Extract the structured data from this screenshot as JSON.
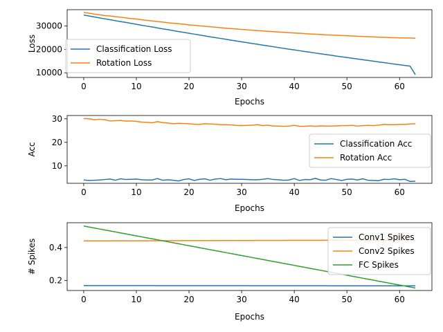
{
  "chart_data": [
    {
      "type": "line",
      "xlabel": "Epochs",
      "ylabel": "Loss",
      "xlim": [
        -3.15,
        66.15
      ],
      "ylim": [
        8000,
        37000
      ],
      "xticks": [
        0,
        10,
        20,
        30,
        40,
        50,
        60
      ],
      "yticks": [
        10000,
        20000,
        30000
      ],
      "legend": {
        "placement": "center-left"
      },
      "grid": false,
      "series": [
        {
          "name": "Classification Loss",
          "color": "#1f77b4",
          "x_range": [
            0,
            63
          ],
          "values": [
            34700,
            34300,
            33900,
            33500,
            33100,
            32700,
            32300,
            31900,
            31550,
            31150,
            30750,
            30350,
            29950,
            29600,
            29200,
            28800,
            28450,
            28050,
            27650,
            27300,
            26900,
            26550,
            26150,
            25800,
            25400,
            25050,
            24700,
            24350,
            23950,
            23600,
            23250,
            22900,
            22550,
            22200,
            21850,
            21500,
            21150,
            20800,
            20450,
            20100,
            19800,
            19450,
            19100,
            18800,
            18450,
            18150,
            17800,
            17500,
            17150,
            16850,
            16550,
            16200,
            15900,
            15600,
            15300,
            15000,
            14650,
            14350,
            14050,
            13750,
            13450,
            13150,
            12850,
            9200
          ]
        },
        {
          "name": "Rotation Loss",
          "color": "#ff7f0e",
          "x_range": [
            0,
            63
          ],
          "values": [
            35800,
            35500,
            35100,
            34800,
            34500,
            34300,
            34000,
            33800,
            33500,
            33200,
            33000,
            32700,
            32400,
            32200,
            31900,
            31700,
            31400,
            31200,
            31000,
            30800,
            30500,
            30300,
            30100,
            29900,
            29700,
            29500,
            29300,
            29100,
            28900,
            28750,
            28550,
            28400,
            28200,
            28050,
            27900,
            27750,
            27600,
            27450,
            27300,
            27150,
            27000,
            26900,
            26750,
            26600,
            26500,
            26400,
            26250,
            26150,
            26050,
            25950,
            25850,
            25750,
            25650,
            25550,
            25450,
            25350,
            25250,
            25150,
            25100,
            25000,
            24950,
            24900,
            24850,
            24800
          ]
        }
      ]
    },
    {
      "type": "line",
      "xlabel": "Epochs",
      "ylabel": "Acc",
      "xlim": [
        -3.15,
        66.15
      ],
      "ylim": [
        2.6,
        31.4
      ],
      "xticks": [
        0,
        10,
        20,
        30,
        40,
        50,
        60
      ],
      "yticks": [
        10,
        20,
        30
      ],
      "legend": {
        "placement": "center-right"
      },
      "grid": false,
      "series": [
        {
          "name": "Classification Acc",
          "color": "#1f77b4",
          "x_range": [
            0,
            63
          ],
          "values": [
            4.0,
            3.8,
            3.9,
            4.0,
            4.2,
            4.4,
            3.9,
            4.5,
            4.2,
            4.3,
            4.4,
            4.1,
            4.0,
            4.0,
            4.6,
            3.9,
            4.1,
            3.9,
            3.6,
            4.2,
            4.5,
            3.8,
            4.3,
            4.5,
            3.9,
            4.4,
            4.6,
            4.1,
            4.4,
            4.3,
            4.3,
            4.2,
            4.1,
            4.1,
            4.3,
            4.6,
            4.2,
            4.1,
            3.9,
            4.0,
            4.6,
            3.8,
            4.2,
            4.1,
            4.7,
            4.0,
            3.9,
            4.6,
            4.2,
            3.8,
            4.3,
            4.4,
            4.0,
            4.5,
            3.9,
            3.8,
            3.7,
            4.3,
            4.2,
            4.5,
            4.1,
            4.3,
            3.4,
            3.5
          ]
        },
        {
          "name": "Rotation Acc",
          "color": "#ff7f0e",
          "x_range": [
            0,
            63
          ],
          "values": [
            30.1,
            30.0,
            29.6,
            29.8,
            29.6,
            29.1,
            29.2,
            29.3,
            29.0,
            29.1,
            28.9,
            28.6,
            28.5,
            28.3,
            28.8,
            28.4,
            28.2,
            27.9,
            28.1,
            28.0,
            27.9,
            27.7,
            27.6,
            27.9,
            27.8,
            27.7,
            27.5,
            27.5,
            27.4,
            27.2,
            27.1,
            27.2,
            27.3,
            27.5,
            27.1,
            27.3,
            26.9,
            26.9,
            26.8,
            26.9,
            27.2,
            26.8,
            26.8,
            27.0,
            26.8,
            27.0,
            26.9,
            26.9,
            27.0,
            27.1,
            27.1,
            27.2,
            26.9,
            27.1,
            27.2,
            27.1,
            27.3,
            27.6,
            27.5,
            27.5,
            27.6,
            27.6,
            27.8,
            27.9
          ]
        }
      ]
    },
    {
      "type": "line",
      "xlabel": "Epochs",
      "ylabel": "# Spikes",
      "xlim": [
        -3.15,
        66.15
      ],
      "ylim": [
        0.14,
        0.55
      ],
      "xticks": [
        0,
        10,
        20,
        30,
        40,
        50,
        60
      ],
      "yticks": [
        0.2,
        0.4
      ],
      "legend": {
        "placement": "top-right"
      },
      "grid": false,
      "series": [
        {
          "name": "Conv1 Spikes",
          "color": "#1f77b4",
          "x_range": [
            0,
            63
          ],
          "start": 0.17,
          "end": 0.168
        },
        {
          "name": "Conv2 Spikes",
          "color": "#ff7f0e",
          "x_range": [
            0,
            63
          ],
          "start": 0.44,
          "end": 0.445
        },
        {
          "name": "FC Spikes",
          "color": "#2ca02c",
          "x_range": [
            0,
            63
          ],
          "start": 0.53,
          "end": 0.155
        }
      ]
    }
  ]
}
